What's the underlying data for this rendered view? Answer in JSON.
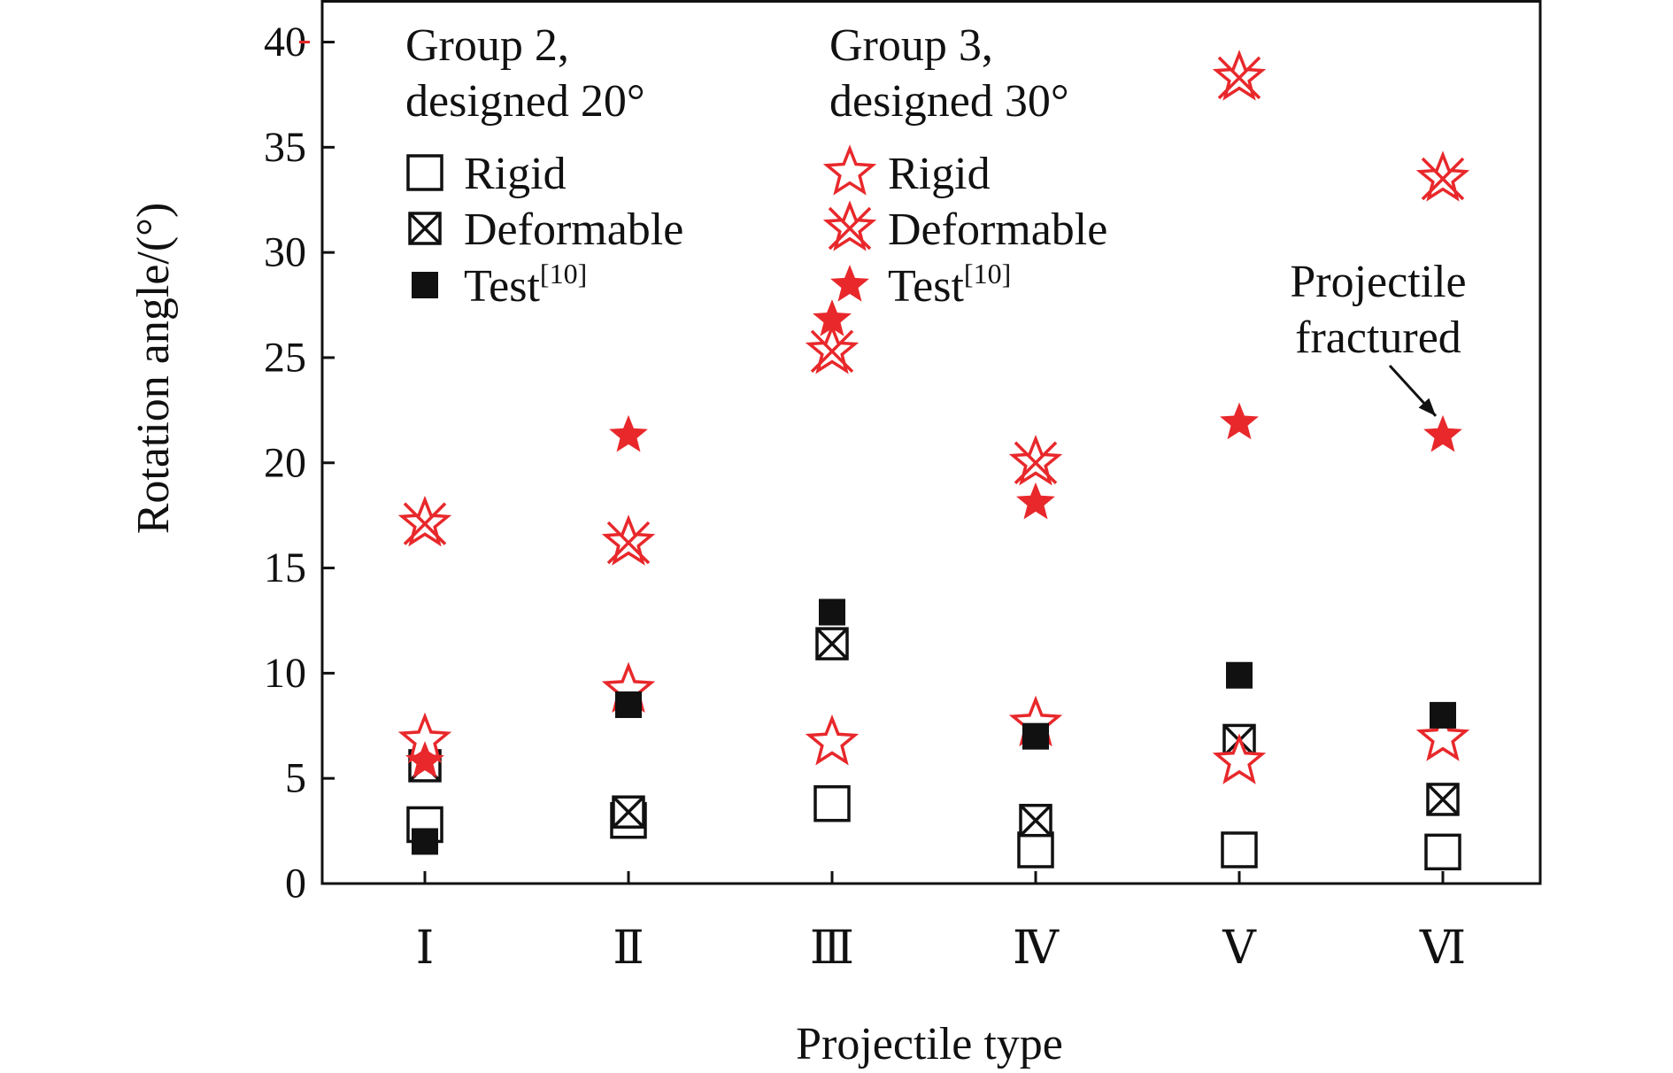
{
  "chart_data": {
    "type": "scatter",
    "categories": [
      "Ⅰ",
      "Ⅱ",
      "Ⅲ",
      "Ⅳ",
      "Ⅴ",
      "Ⅵ"
    ],
    "xlabel": "Projectile type",
    "ylabel": "Rotation angle/(°)",
    "ylim": [
      0,
      42
    ],
    "yticks": [
      0,
      5,
      10,
      15,
      20,
      25,
      30,
      35,
      40
    ],
    "grid": false,
    "legend": {
      "placement": "top-left",
      "groups": [
        {
          "title_line1": "Group 2,",
          "title_line2": "designed 20°"
        },
        {
          "title_line1": "Group 3,",
          "title_line2": "designed 30°"
        }
      ]
    },
    "series": [
      {
        "name": "Rigid",
        "group": 0,
        "marker": "open-square",
        "color": "#111111",
        "values": [
          2.8,
          3.0,
          3.8,
          1.6,
          1.6,
          1.5
        ]
      },
      {
        "name": "Deformable",
        "group": 0,
        "marker": "crossed-square",
        "color": "#111111",
        "values": [
          5.6,
          3.4,
          11.4,
          3.0,
          6.8,
          4.0
        ]
      },
      {
        "name": "Test",
        "superscript": "[10]",
        "group": 0,
        "marker": "filled-square",
        "color": "#111111",
        "values": [
          2.0,
          8.5,
          12.9,
          7.0,
          9.9,
          8.0
        ]
      },
      {
        "name": "Rigid",
        "group": 1,
        "marker": "open-star",
        "color": "#e8282b",
        "values": [
          6.8,
          9.2,
          6.7,
          7.6,
          5.8,
          6.9
        ]
      },
      {
        "name": "Deformable",
        "group": 1,
        "marker": "crossed-star",
        "color": "#e8282b",
        "values": [
          17.1,
          16.2,
          25.3,
          20.0,
          38.3,
          33.5
        ]
      },
      {
        "name": "Test",
        "superscript": "[10]",
        "group": 1,
        "marker": "filled-star",
        "color": "#e8282b",
        "values": [
          5.8,
          21.3,
          26.8,
          18.1,
          21.9,
          21.3
        ]
      }
    ],
    "annotations": [
      {
        "line1": "Projectile",
        "line2": "fractured",
        "category": "Ⅵ",
        "value": 21.3
      }
    ],
    "colors": {
      "group2": "#111111",
      "group3": "#e8282b",
      "axis": "#111111"
    }
  }
}
